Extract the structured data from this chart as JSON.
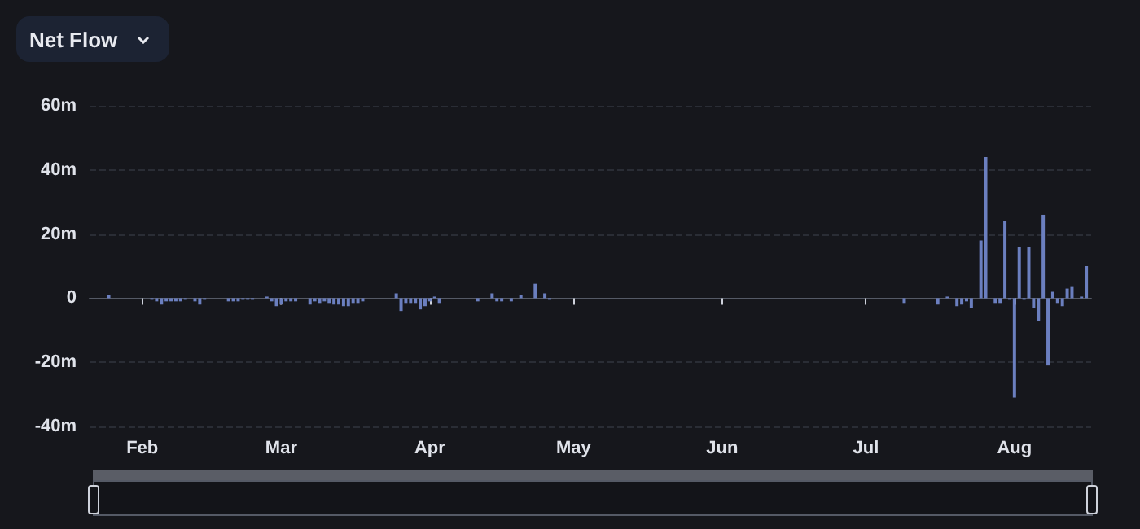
{
  "chart_data": {
    "type": "bar",
    "title": "Net Flow",
    "x": [
      "--01-25",
      "--02-03",
      "--02-04",
      "--02-05",
      "--02-06",
      "--02-07",
      "--02-08",
      "--02-09",
      "--02-10",
      "--02-12",
      "--02-13",
      "--02-14",
      "--02-19",
      "--02-20",
      "--02-21",
      "--02-22",
      "--02-23",
      "--02-24",
      "--02-27",
      "--02-28",
      "--02-29",
      "--03-01",
      "--03-02",
      "--03-03",
      "--03-04",
      "--03-07",
      "--03-08",
      "--03-09",
      "--03-10",
      "--03-11",
      "--03-12",
      "--03-13",
      "--03-14",
      "--03-15",
      "--03-16",
      "--03-17",
      "--03-18",
      "--03-25",
      "--03-26",
      "--03-27",
      "--03-28",
      "--03-29",
      "--03-30",
      "--03-31",
      "--04-01",
      "--04-02",
      "--04-03",
      "--04-11",
      "--04-14",
      "--04-15",
      "--04-16",
      "--04-18",
      "--04-20",
      "--04-23",
      "--04-25",
      "--04-26",
      "--07-09",
      "--07-16",
      "--07-18",
      "--07-20",
      "--07-21",
      "--07-22",
      "--07-23",
      "--07-25",
      "--07-26",
      "--07-28",
      "--07-29",
      "--07-30",
      "--07-31",
      "--08-01",
      "--08-02",
      "--08-03",
      "--08-04",
      "--08-05",
      "--08-06",
      "--08-07",
      "--08-08",
      "--08-09",
      "--08-10",
      "--08-11",
      "--08-12",
      "--08-13",
      "--08-15",
      "--08-16"
    ],
    "values": [
      1,
      -0.5,
      -1,
      -2,
      -1,
      -1,
      -1,
      -1,
      -0.5,
      -1,
      -2,
      -0.5,
      -1,
      -1,
      -1,
      -0.5,
      -0.5,
      -0.5,
      0.5,
      -1,
      -2.5,
      -2,
      -1,
      -1,
      -1,
      -2,
      -1,
      -1.5,
      -1,
      -1.5,
      -2,
      -2,
      -2.5,
      -2.5,
      -1.5,
      -1.5,
      -1,
      1.5,
      -4,
      -1.5,
      -1.5,
      -1.5,
      -3.5,
      -2.5,
      -1,
      0.5,
      -1.5,
      -1,
      1.5,
      -1,
      -1,
      -1,
      1,
      4.5,
      1.5,
      -0.5,
      -1.5,
      -2,
      0.5,
      -2.5,
      -2,
      -1,
      -3,
      18,
      44,
      -1.5,
      -1.5,
      24,
      -0.5,
      -31,
      16,
      -0.5,
      16,
      -3,
      -7,
      26,
      -21,
      2,
      -1.5,
      -2.5,
      3,
      3.5,
      0.5,
      10
    ],
    "color": "#6b7fbf",
    "xlim": [
      "--01-21",
      "--08-17"
    ],
    "xticks": [
      {
        "value": "--02-01",
        "label": "Feb"
      },
      {
        "value": "--03-01",
        "label": "Mar"
      },
      {
        "value": "--04-01",
        "label": "Apr"
      },
      {
        "value": "--05-01",
        "label": "May"
      },
      {
        "value": "--06-01",
        "label": "Jun"
      },
      {
        "value": "--07-01",
        "label": "Jul"
      },
      {
        "value": "--08-01",
        "label": "Aug"
      }
    ],
    "ylim": [
      -40,
      60
    ],
    "yticks": [
      {
        "value": -40,
        "label": "-40m"
      },
      {
        "value": -20,
        "label": "-20m"
      },
      {
        "value": 0,
        "label": "0"
      },
      {
        "value": 20,
        "label": "20m"
      },
      {
        "value": 40,
        "label": "40m"
      },
      {
        "value": 60,
        "label": "60m"
      }
    ],
    "grid": "y"
  }
}
